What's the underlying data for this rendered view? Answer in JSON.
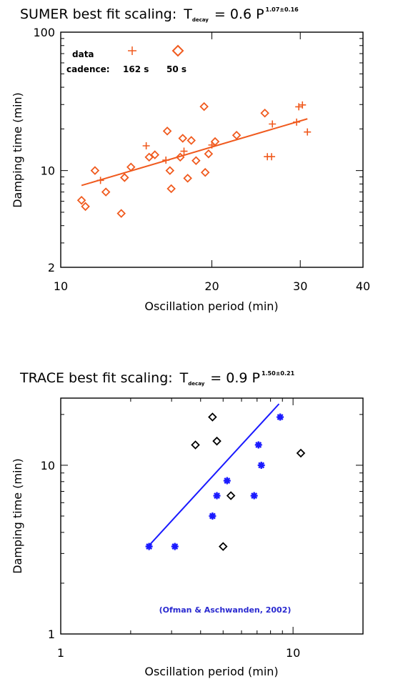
{
  "colors": {
    "sumer": "#f05a1e",
    "trace_fit": "#1a1aff",
    "trace_marker": "#1a1aff",
    "trace_other": "#000000",
    "annotation": "#2a2ad0"
  },
  "chart_data": [
    {
      "id": "sumer",
      "type": "scatter",
      "title": {
        "prefix": "SUMER best fit scaling:",
        "t": "T",
        "sub": "decay",
        "expr": "= 0.6  P",
        "sup": "1.07±0.16"
      },
      "xlabel": "Oscillation period (min)",
      "ylabel": "Damping time (min)",
      "xscale": "log",
      "yscale": "log",
      "xlim": [
        10,
        40
      ],
      "ylim": [
        2,
        100
      ],
      "xticks": [
        {
          "v": 10,
          "label": "10"
        },
        {
          "v": 20,
          "label": "20"
        },
        {
          "v": 30,
          "label": "30"
        },
        {
          "v": 40,
          "label": "40"
        }
      ],
      "yticks": [
        {
          "v": 2,
          "label": "2"
        },
        {
          "v": 10,
          "label": "10"
        },
        {
          "v": 100,
          "label": "100"
        }
      ],
      "legend": {
        "data_label": "data",
        "cadence_label": "cadence:",
        "s162": "162 s",
        "s50": "50 s"
      },
      "fit": {
        "a": 0.6,
        "b": 1.07,
        "x_range": [
          11.0,
          31.0
        ]
      },
      "series": [
        {
          "cadence": "162 s",
          "marker": "plus",
          "points": [
            [
              12.0,
              8.5
            ],
            [
              14.8,
              15.1
            ],
            [
              16.2,
              11.9
            ],
            [
              17.6,
              13.8
            ],
            [
              20.0,
              15.3
            ],
            [
              25.8,
              12.6
            ],
            [
              26.3,
              12.6
            ],
            [
              26.4,
              21.7
            ],
            [
              29.5,
              22.4
            ],
            [
              29.8,
              28.9
            ],
            [
              30.3,
              29.8
            ],
            [
              31.0,
              19.0
            ]
          ]
        },
        {
          "cadence": "50 s",
          "marker": "diamond",
          "points": [
            [
              11.0,
              6.1
            ],
            [
              11.2,
              5.5
            ],
            [
              11.7,
              10.0
            ],
            [
              12.3,
              7.0
            ],
            [
              13.2,
              4.9
            ],
            [
              13.4,
              8.9
            ],
            [
              13.8,
              10.6
            ],
            [
              15.0,
              12.5
            ],
            [
              15.4,
              13.0
            ],
            [
              16.3,
              19.3
            ],
            [
              16.5,
              10.0
            ],
            [
              16.6,
              7.4
            ],
            [
              17.3,
              12.5
            ],
            [
              17.5,
              17.1
            ],
            [
              17.9,
              8.8
            ],
            [
              18.2,
              16.5
            ],
            [
              18.6,
              11.8
            ],
            [
              19.3,
              29.0
            ],
            [
              19.4,
              9.7
            ],
            [
              19.7,
              13.2
            ],
            [
              20.3,
              16.2
            ],
            [
              22.4,
              18.0
            ],
            [
              25.5,
              26.0
            ]
          ]
        }
      ]
    },
    {
      "id": "trace",
      "type": "scatter",
      "title": {
        "prefix": "TRACE best fit scaling:",
        "t": "T",
        "sub": "decay",
        "expr": "= 0.9  P",
        "sup": "1.50±0.21"
      },
      "xlabel": "Oscillation period (min)",
      "ylabel": "Damping time (min)",
      "xscale": "log",
      "yscale": "log",
      "xlim": [
        1,
        20
      ],
      "ylim": [
        1,
        25
      ],
      "xticks": [
        {
          "v": 1,
          "label": "1"
        },
        {
          "v": 10,
          "label": "10"
        }
      ],
      "yticks": [
        {
          "v": 1,
          "label": "1"
        },
        {
          "v": 10,
          "label": "10"
        }
      ],
      "annotation": "(Ofman & Aschwanden, 2002)",
      "fit": {
        "a": 0.9,
        "b": 1.5,
        "x_range": [
          2.4,
          8.7
        ]
      },
      "series": [
        {
          "marker": "asterisk",
          "color": "blue",
          "points": [
            [
              2.4,
              3.3
            ],
            [
              3.1,
              3.3
            ],
            [
              4.5,
              5.0
            ],
            [
              4.7,
              6.6
            ],
            [
              5.2,
              8.1
            ],
            [
              6.8,
              6.6
            ],
            [
              7.1,
              13.2
            ],
            [
              7.3,
              10.0
            ],
            [
              8.8,
              19.3
            ]
          ]
        },
        {
          "marker": "diamond",
          "color": "black",
          "points": [
            [
              3.8,
              13.2
            ],
            [
              4.5,
              19.3
            ],
            [
              4.7,
              13.9
            ],
            [
              5.0,
              3.3
            ],
            [
              5.4,
              6.6
            ],
            [
              10.8,
              11.8
            ]
          ]
        }
      ]
    }
  ]
}
